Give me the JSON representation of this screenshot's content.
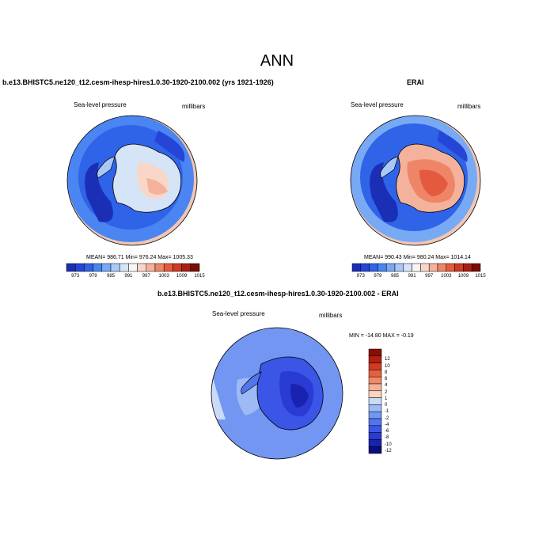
{
  "title": "ANN",
  "colors": {
    "seq": [
      "#1a2fb5",
      "#2545d6",
      "#2f63e8",
      "#4a85f2",
      "#78a9f5",
      "#a9c8f7",
      "#d6e4f8",
      "#f6f6f6",
      "#f8d7c8",
      "#f4b29c",
      "#ee8567",
      "#e45a3e",
      "#cf3a22",
      "#a81e10",
      "#7a0c05"
    ],
    "diff": [
      "#0a0f7a",
      "#1a22b0",
      "#2a3bd4",
      "#3b55e6",
      "#5275ee",
      "#7396f2",
      "#9dbaf5",
      "#c9dbf8",
      "#fbd5c0",
      "#f6b095",
      "#ef8a68",
      "#e4603f",
      "#d13b22",
      "#b2200f",
      "#8a0d05"
    ]
  },
  "panels": [
    {
      "id": "model",
      "title": "b.e13.BHISTC5.ne120_t12.cesm-ihesp-hires1.0.30-1920-2100.002 (yrs 1921-1926)",
      "left_label": "Sea-level pressure",
      "right_label": "millibars",
      "stats": "MEAN= 986.71   Min= 976.24   Max= 1005.33",
      "colorbar_ticks": [
        "973",
        "979",
        "985",
        "991",
        "997",
        "1003",
        "1009",
        "1015"
      ]
    },
    {
      "id": "obs",
      "title": "ERAI",
      "left_label": "Sea-level pressure",
      "right_label": "millibars",
      "stats": "MEAN= 990.43   Min= 980.24   Max= 1014.14",
      "colorbar_ticks": [
        "973",
        "979",
        "985",
        "991",
        "997",
        "1003",
        "1009",
        "1015"
      ]
    },
    {
      "id": "diff",
      "title": "b.e13.BHISTC5.ne120_t12.cesm-ihesp-hires1.0.30-1920-2100.002 - ERAI",
      "left_label": "Sea-level pressure",
      "right_label": "millibars",
      "stats": "MIN = -14.80  MAX =  -0.19",
      "colorbar_ticks": [
        "12",
        "10",
        "8",
        "6",
        "4",
        "2",
        "1",
        "0",
        "-1",
        "-2",
        "-4",
        "-6",
        "-8",
        "-10",
        "-12"
      ]
    }
  ]
}
